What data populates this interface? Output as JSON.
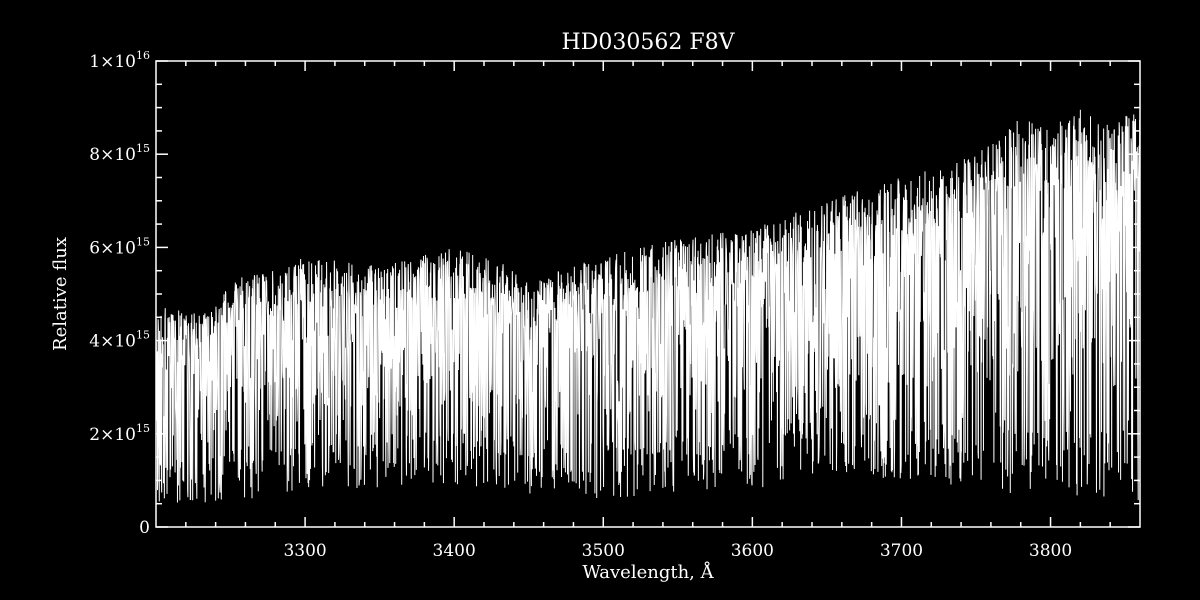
{
  "chart_data": {
    "type": "line",
    "title": "HD030562  F8V",
    "xlabel": "Wavelength, Å",
    "ylabel": "Relative flux",
    "xlim": [
      3200,
      3860
    ],
    "ylim": [
      0,
      1e+16
    ],
    "x_ticks": [
      {
        "value": 3300,
        "label": "3300"
      },
      {
        "value": 3400,
        "label": "3400"
      },
      {
        "value": 3500,
        "label": "3500"
      },
      {
        "value": 3600,
        "label": "3600"
      },
      {
        "value": 3700,
        "label": "3700"
      },
      {
        "value": 3800,
        "label": "3800"
      }
    ],
    "y_ticks": [
      {
        "value": 0,
        "mantissa": "0",
        "exponent": ""
      },
      {
        "value": 2000000000000000.0,
        "mantissa": "2×10",
        "exponent": "15"
      },
      {
        "value": 4000000000000000.0,
        "mantissa": "4×10",
        "exponent": "15"
      },
      {
        "value": 6000000000000000.0,
        "mantissa": "6×10",
        "exponent": "15"
      },
      {
        "value": 8000000000000000.0,
        "mantissa": "8×10",
        "exponent": "15"
      },
      {
        "value": 1e+16,
        "mantissa": "1×10",
        "exponent": "16"
      }
    ],
    "series": [
      {
        "color": "#ffffff",
        "continuum_x": [
          3200,
          3220,
          3240,
          3255,
          3280,
          3300,
          3350,
          3400,
          3430,
          3450,
          3500,
          3550,
          3600,
          3650,
          3700,
          3750,
          3780,
          3800,
          3820,
          3840,
          3860
        ],
        "continuum_y": [
          4800000000000000.0,
          4600000000000000.0,
          4800000000000000.0,
          5400000000000000.0,
          5500000000000000.0,
          5800000000000000.0,
          5600000000000000.0,
          6000000000000000.0,
          5700000000000000.0,
          5300000000000000.0,
          5800000000000000.0,
          6200000000000000.0,
          6400000000000000.0,
          7000000000000000.0,
          7500000000000000.0,
          8000000000000000.0,
          8800000000000000.0,
          8600000000000000.0,
          9000000000000000.0,
          8700000000000000.0,
          9000000000000000.0
        ],
        "minimum_x": [
          3200,
          3250,
          3300,
          3400,
          3450,
          3500,
          3550,
          3600,
          3650,
          3700,
          3750,
          3800,
          3860
        ],
        "minimum_y": [
          500000000000000.0,
          500000000000000.0,
          800000000000000.0,
          900000000000000.0,
          700000000000000.0,
          600000000000000.0,
          700000000000000.0,
          800000000000000.0,
          1200000000000000.0,
          1000000000000000.0,
          800000000000000.0,
          600000000000000.0,
          500000000000000.0
        ]
      }
    ],
    "axis_color": "#ffffff",
    "background": "#000000"
  }
}
